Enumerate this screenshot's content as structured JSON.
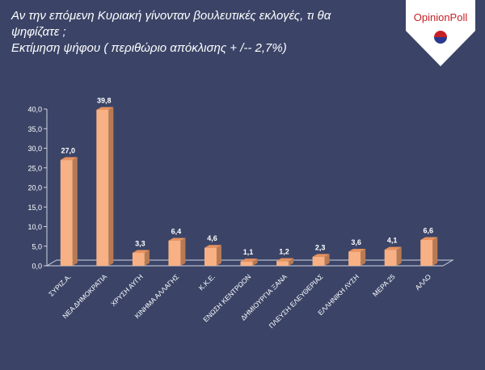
{
  "title_lines": [
    "Αν την επόμενη Κυριακή γίνονταν βουλευτικές εκλογές, τι θα",
    "ψηφίζατε ;",
    "Εκτίμηση ψήφου ( περιθώριο απόκλισης + /-- 2,7%)"
  ],
  "logo": {
    "text": "OpinionPoll",
    "bg": "#ffffff",
    "text_color": "#c62026",
    "accent_blue": "#2a3990"
  },
  "colors": {
    "background": "#3b4467",
    "bar_front": "#f7b184",
    "bar_side": "#b97a52",
    "bar_top": "#e8925f",
    "axis": "#cfd3df",
    "label": "#ffffff"
  },
  "chart_data": {
    "type": "bar",
    "categories": [
      "ΣΥΡΙΖ.Α.",
      "ΝΕΑ ΔΗΜΟΚΡΑΤΙΑ",
      "ΧΡΥΣΗ ΑΥΓΗ",
      "ΚΙΝΗΜΑ ΑΛΛΑΓΗΣ",
      "Κ.Κ.Ε.",
      "ΕΝΩΣΗ ΚΕΝΤΡΩΟΝ",
      "ΔΗΜΙΟΥΡΓΙΑ ΞΑΝΑ",
      "ΠΛΕΥΣΗ ΕΛΕΥΘΕΡΙΑΣ",
      "ΕΛΛΗΝΙΚΗ ΛΥΣΗ",
      "ΜΕΡΑ 25",
      "ΑΛΛΟ"
    ],
    "values": [
      27.0,
      39.8,
      3.3,
      6.4,
      4.6,
      1.1,
      1.2,
      2.3,
      3.6,
      4.1,
      6.6
    ],
    "value_labels": [
      "27,0",
      "39,8",
      "3,3",
      "6,4",
      "4,6",
      "1,1",
      "1,2",
      "2,3",
      "3,6",
      "4,1",
      "6,6"
    ],
    "yticks": [
      "0,0",
      "5,0",
      "10,0",
      "15,0",
      "20,0",
      "25,0",
      "30,0",
      "35,0",
      "40,0"
    ],
    "ylim": [
      0,
      40
    ],
    "grid": false,
    "legend": "none"
  }
}
